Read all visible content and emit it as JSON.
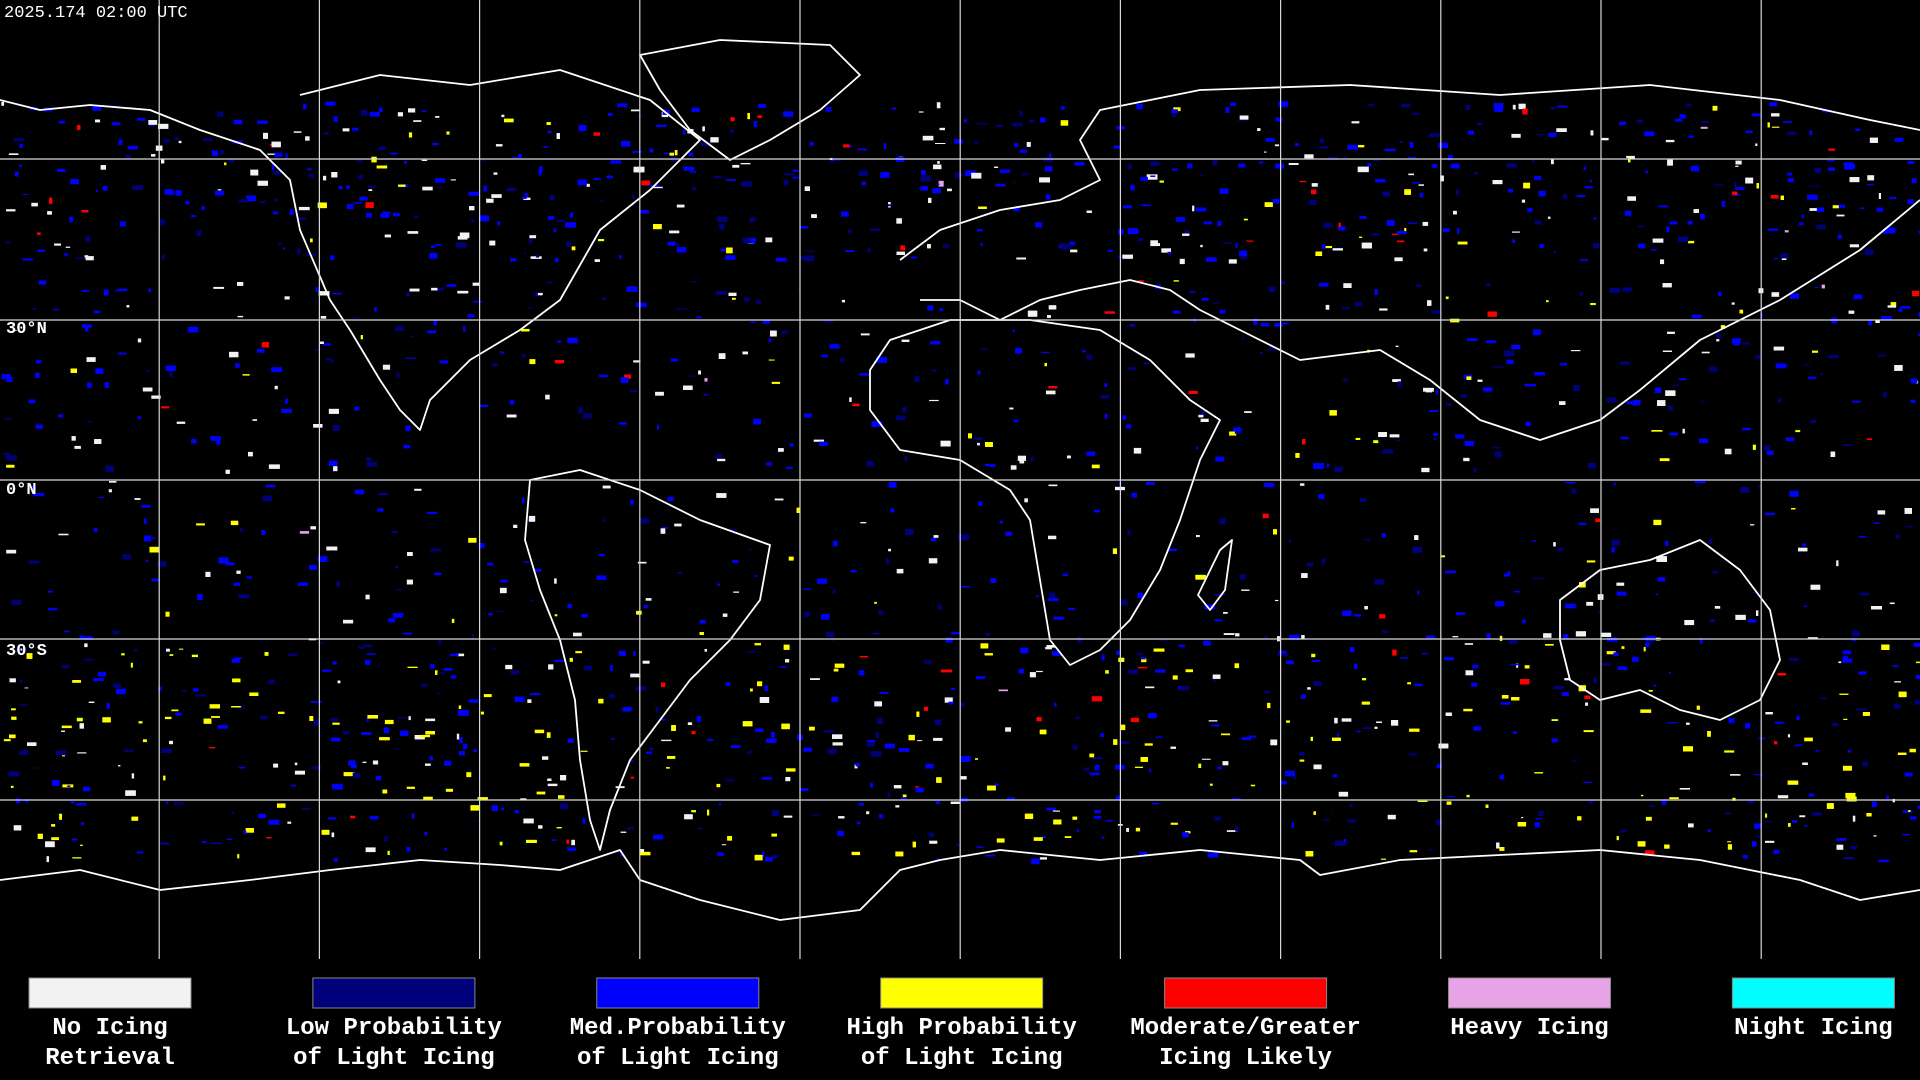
{
  "timestamp": "2025.174 02:00 UTC",
  "latitude_labels": [
    "30°N",
    "0°N",
    "30°S"
  ],
  "legend": [
    {
      "lines": [
        "No Icing",
        "Retrieval"
      ],
      "color": "#f2f2f2"
    },
    {
      "lines": [
        "Low Probability",
        "of Light Icing"
      ],
      "color": "#00007a"
    },
    {
      "lines": [
        "Med.Probability",
        "of Light Icing"
      ],
      "color": "#0000ff"
    },
    {
      "lines": [
        "High Probability",
        "of Light Icing"
      ],
      "color": "#ffff00"
    },
    {
      "lines": [
        "Moderate/Greater",
        "Icing Likely"
      ],
      "color": "#ff0000"
    },
    {
      "lines": [
        "Heavy Icing"
      ],
      "color": "#e6a3e6"
    },
    {
      "lines": [
        "Night Icing"
      ],
      "color": "#00ffff"
    }
  ]
}
